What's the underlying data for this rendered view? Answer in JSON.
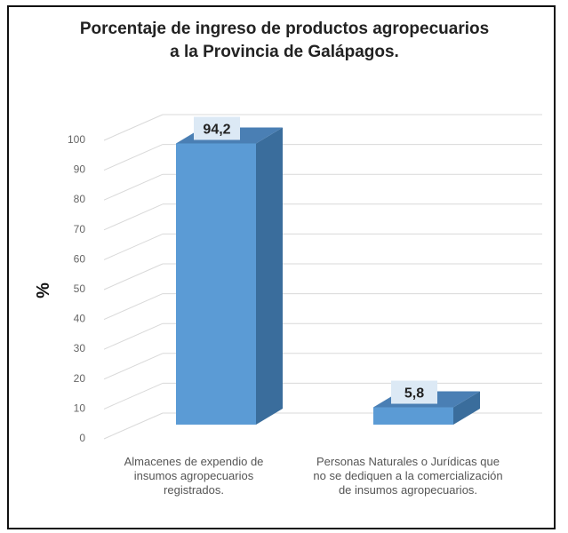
{
  "chart_data": {
    "type": "bar",
    "title_lines": [
      "Porcentaje de ingreso de productos agropecuarios",
      "a la Provincia de Galápagos."
    ],
    "ylabel": "%",
    "xlabel": "",
    "ylim": [
      0,
      100
    ],
    "yticks": [
      0,
      10,
      20,
      30,
      40,
      50,
      60,
      70,
      80,
      90,
      100
    ],
    "categories": [
      "Almacenes de expendio de insumos agropecuarios registrados.",
      "Personas Naturales o Jurídicas que no se dediquen a la comercialización de insumos agropecuarios."
    ],
    "values": [
      94.2,
      5.8
    ],
    "value_labels": [
      "94,2",
      "5,8"
    ],
    "bar_style": "3d",
    "grid": true,
    "legend": "none",
    "colors": {
      "front": "#5b9bd5",
      "side": "#3a6d9c",
      "top": "#4a7fb4",
      "grid": "#d9d9d9",
      "label_bg": "#dce9f5"
    }
  }
}
